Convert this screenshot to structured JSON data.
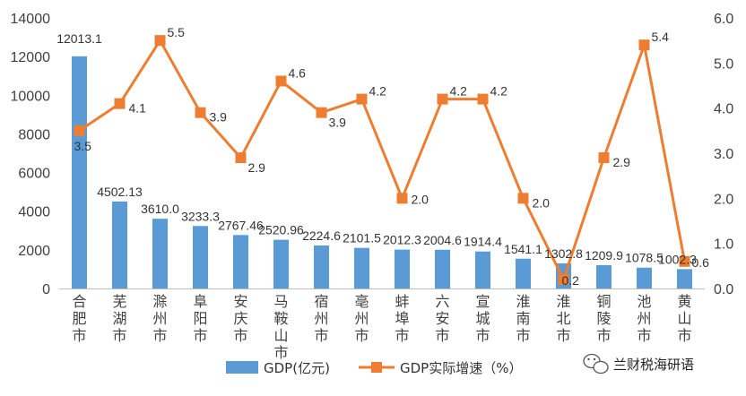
{
  "chart_data": {
    "type": "bar",
    "categories": [
      "合肥市",
      "芜湖市",
      "滁州市",
      "阜阳市",
      "安庆市",
      "马鞍山市",
      "宿州市",
      "亳州市",
      "蚌埠市",
      "六安市",
      "宣城市",
      "淮南市",
      "淮北市",
      "铜陵市",
      "池州市",
      "黄山市"
    ],
    "series": [
      {
        "name": "GDP(亿元)",
        "type": "bar",
        "axis": "left",
        "color": "#5b9bd5",
        "values": [
          12013.1,
          4502.13,
          3610.0,
          3233.3,
          2767.46,
          2520.96,
          2224.6,
          2101.5,
          2012.3,
          2004.6,
          1914.4,
          1541.1,
          1302.8,
          1209.9,
          1078.5,
          1002.3
        ],
        "labels": [
          "12013.1",
          "4502.13",
          "3610.0",
          "3233.3",
          "2767.46",
          "2520.96",
          "2224.6",
          "2101.5",
          "2012.3",
          "2004.6",
          "1914.4",
          "1541.1",
          "1302.8",
          "1209.9",
          "1078.5",
          "1002.3"
        ]
      },
      {
        "name": "GDP实际增速（%）",
        "type": "line",
        "axis": "right",
        "color": "#ed7d31",
        "values": [
          3.5,
          4.1,
          5.5,
          3.9,
          2.9,
          4.6,
          3.9,
          4.2,
          2.0,
          4.2,
          4.2,
          2.0,
          0.2,
          2.9,
          5.4,
          0.6
        ],
        "labels": [
          "3.5",
          "4.1",
          "5.5",
          "3.9",
          "2.9",
          "4.6",
          "3.9",
          "4.2",
          "2.0",
          "4.2",
          "4.2",
          "2.0",
          "0.2",
          "2.9",
          "5.4",
          "0.6"
        ]
      }
    ],
    "left_axis": {
      "ylim": [
        0,
        14000
      ],
      "ticks": [
        "0",
        "2000",
        "4000",
        "6000",
        "8000",
        "10000",
        "12000",
        "14000"
      ]
    },
    "right_axis": {
      "ylim": [
        0,
        6.0
      ],
      "ticks": [
        "0.0",
        "1.0",
        "2.0",
        "3.0",
        "4.0",
        "5.0",
        "6.0"
      ]
    },
    "grid": false,
    "legend_position": "bottom"
  },
  "watermark": {
    "text": "兰财税海研语",
    "icon": "wechat-icon"
  }
}
